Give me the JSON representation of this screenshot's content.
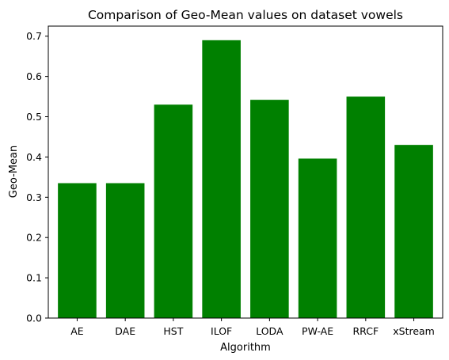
{
  "chart_data": {
    "type": "bar",
    "title": "Comparison of Geo-Mean values on dataset vowels",
    "xlabel": "Algorithm",
    "ylabel": "Geo-Mean",
    "categories": [
      "AE",
      "DAE",
      "HST",
      "ILOF",
      "LODA",
      "PW-AE",
      "RRCF",
      "xStream"
    ],
    "values": [
      0.335,
      0.335,
      0.53,
      0.69,
      0.542,
      0.396,
      0.55,
      0.43
    ],
    "ylim": [
      0,
      0.725
    ],
    "yticks": [
      "0.0",
      "0.1",
      "0.2",
      "0.3",
      "0.4",
      "0.5",
      "0.6",
      "0.7"
    ],
    "bar_color": "#008000",
    "grid": false
  }
}
